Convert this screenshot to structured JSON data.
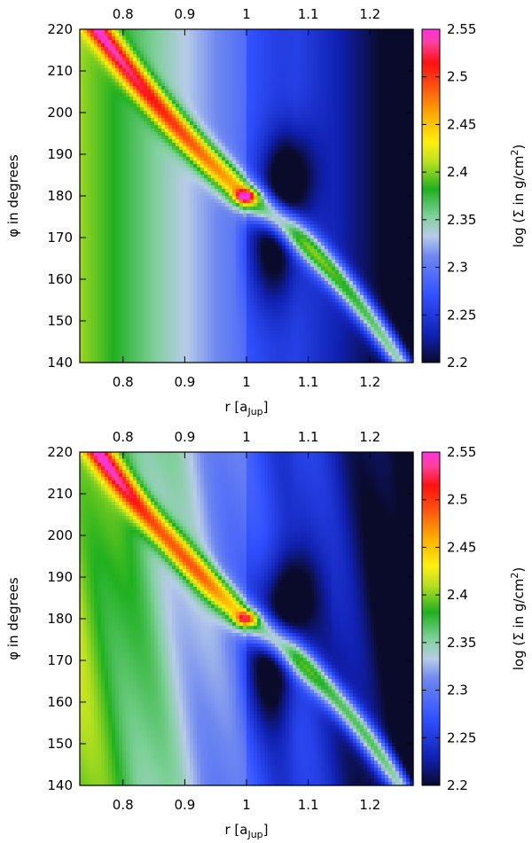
{
  "chart_data": [
    {
      "type": "heatmap",
      "xlabel": "r [a_Jup]",
      "xlabel_main": "r [a",
      "xlabel_sub": "Jup",
      "xlabel_end": "]",
      "ylabel": "φ in degrees",
      "colorbar_label": "log (Σ in g/cm²)",
      "colorbar_label_main": "log (Σ in g/cm",
      "colorbar_label_sup": "2",
      "colorbar_label_end": ")",
      "xlim": [
        0.73,
        1.27
      ],
      "ylim": [
        140,
        220
      ],
      "zlim": [
        2.2,
        2.55
      ],
      "xticks": [
        0.8,
        0.9,
        1,
        1.1,
        1.2
      ],
      "xtick_labels": [
        "0.8",
        "0.9",
        "1",
        "1.1",
        "1.2"
      ],
      "yticks": [
        140,
        150,
        160,
        170,
        180,
        190,
        200,
        210,
        220
      ],
      "ytick_labels": [
        "140",
        "150",
        "160",
        "170",
        "180",
        "190",
        "200",
        "210",
        "220"
      ],
      "cbticks": [
        2.2,
        2.25,
        2.3,
        2.35,
        2.4,
        2.45,
        2.5,
        2.55
      ],
      "cbtick_labels": [
        "2.2",
        "2.25",
        "2.3",
        "2.35",
        "2.4",
        "2.45",
        "2.5",
        "2.55"
      ],
      "features": {
        "planet_r": 1.0,
        "planet_phi": 180,
        "peak": 2.55,
        "spiral": "leading arm inner, trailing arm outer",
        "gap_min": 2.2
      }
    },
    {
      "type": "heatmap",
      "xlabel": "r [a_Jup]",
      "xlabel_main": "r [a",
      "xlabel_sub": "Jup",
      "xlabel_end": "]",
      "ylabel": "φ in degrees",
      "colorbar_label": "log (Σ in g/cm²)",
      "colorbar_label_main": "log (Σ in g/cm",
      "colorbar_label_sup": "2",
      "colorbar_label_end": ")",
      "xlim": [
        0.73,
        1.27
      ],
      "ylim": [
        140,
        220
      ],
      "zlim": [
        2.2,
        2.55
      ],
      "xticks": [
        0.8,
        0.9,
        1,
        1.1,
        1.2
      ],
      "xtick_labels": [
        "0.8",
        "0.9",
        "1",
        "1.1",
        "1.2"
      ],
      "yticks": [
        140,
        150,
        160,
        170,
        180,
        190,
        200,
        210,
        220
      ],
      "ytick_labels": [
        "140",
        "150",
        "160",
        "170",
        "180",
        "190",
        "200",
        "210",
        "220"
      ],
      "cbticks": [
        2.2,
        2.25,
        2.3,
        2.35,
        2.4,
        2.45,
        2.5,
        2.55
      ],
      "cbtick_labels": [
        "2.2",
        "2.25",
        "2.3",
        "2.35",
        "2.4",
        "2.45",
        "2.5",
        "2.55"
      ],
      "features": {
        "planet_r": 1.0,
        "planet_phi": 180,
        "peak": 2.55,
        "spiral": "leading arm inner, trailing arm outer",
        "gap_min": 2.2
      }
    }
  ]
}
